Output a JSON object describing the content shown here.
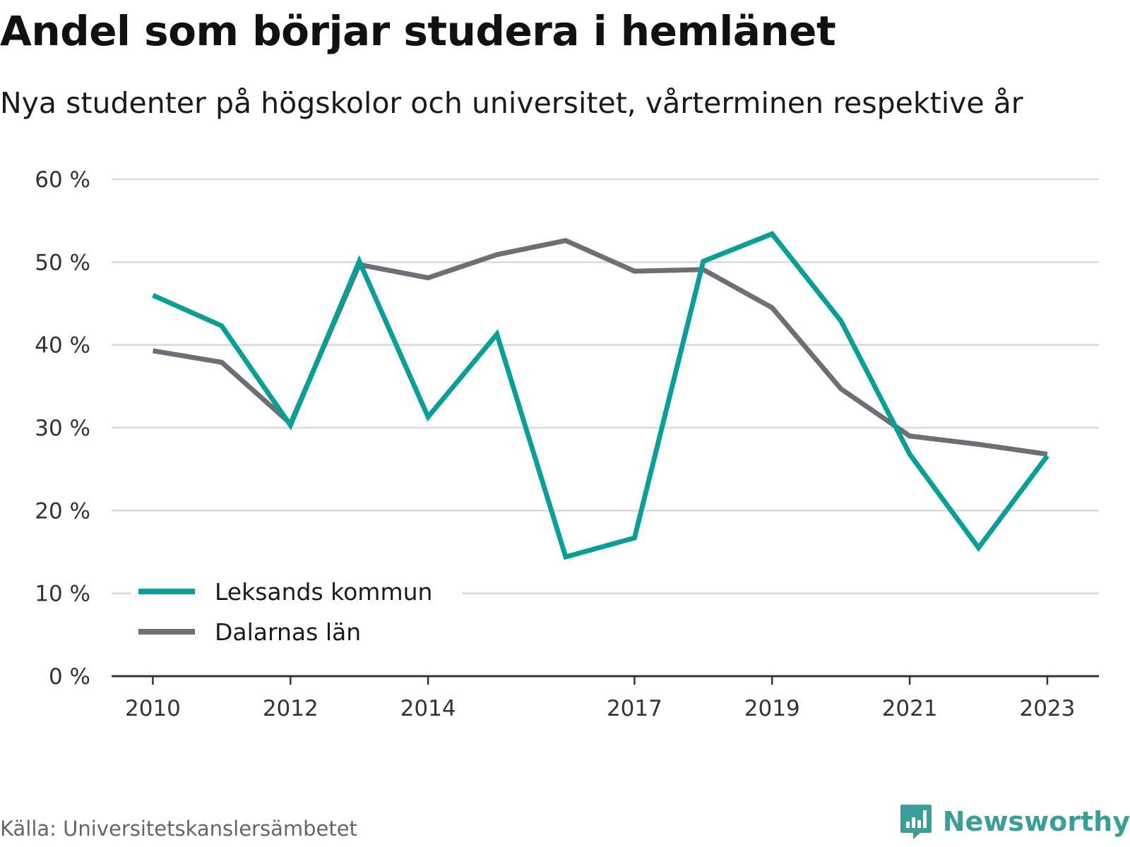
{
  "header": {
    "title": "Andel som börjar studera i hemlänet",
    "subtitle": "Nya studenter på högskolor och universitet, vårterminen respektive år"
  },
  "footer": {
    "source": "Källa: Universitetskanslersämbetet",
    "brand": "Newsworthy",
    "brand_icon": "bar-chart-icon"
  },
  "colors": {
    "leksand": "#0a9e98",
    "dalarna": "#6e6e74",
    "grid": "#d9d9d9",
    "axis": "#333333",
    "brand": "#3c9e98"
  },
  "chart_data": {
    "type": "line",
    "title": "Andel som börjar studera i hemlänet",
    "subtitle": "Nya studenter på högskolor och universitet, vårterminen respektive år",
    "x": [
      2010,
      2011,
      2012,
      2013,
      2014,
      2015,
      2016,
      2017,
      2018,
      2019,
      2020,
      2021,
      2022,
      2023
    ],
    "x_tick_labels": [
      "2010",
      "2012",
      "2014",
      "2017",
      "2019",
      "2021",
      "2023"
    ],
    "y_ticks": [
      0,
      10,
      20,
      30,
      40,
      50,
      60
    ],
    "y_tick_labels": [
      "0 %",
      "10 %",
      "20 %",
      "30 %",
      "40 %",
      "50 %",
      "60 %"
    ],
    "ylim": [
      0,
      60
    ],
    "grid": true,
    "legend_position": "bottom-left",
    "series": [
      {
        "name": "Leksands kommun",
        "color": "#0a9e98",
        "values": [
          46,
          42.3,
          30.3,
          50.1,
          31.3,
          41.3,
          14.4,
          16.7,
          50.1,
          53.4,
          42.9,
          26.8,
          15.5,
          26.6
        ]
      },
      {
        "name": "Dalarnas län",
        "color": "#6e6e74",
        "values": [
          39.3,
          37.9,
          30.5,
          49.7,
          48.1,
          50.9,
          52.6,
          48.9,
          49.1,
          44.5,
          34.7,
          29,
          28,
          26.8
        ]
      }
    ]
  }
}
